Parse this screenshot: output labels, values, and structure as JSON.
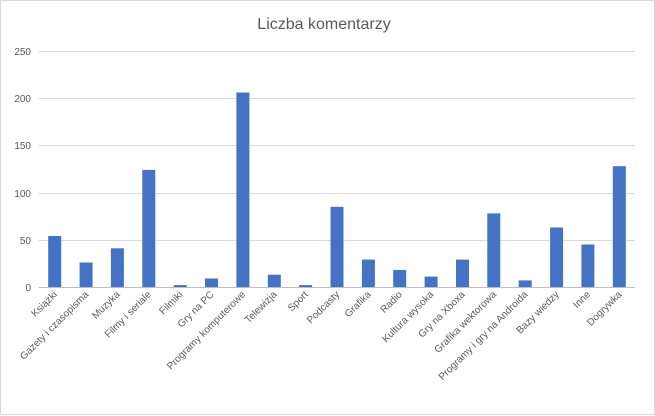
{
  "chart_data": {
    "type": "bar",
    "title": "Liczba komentarzy",
    "xlabel": "",
    "ylabel": "",
    "ylim": [
      0,
      250
    ],
    "yticks": [
      0,
      50,
      100,
      150,
      200,
      250
    ],
    "grid": true,
    "legend": "none",
    "bar_color": "#4472c4",
    "categories": [
      "Książki",
      "Gazety i czasopisma",
      "Muzyka",
      "Filmy i seriale",
      "Filmiki",
      "Gry na PC",
      "Programy komputerowe",
      "Telewizja",
      "Sport",
      "Podcasty",
      "Grafika",
      "Radio",
      "Kultura wysoka",
      "Gry na Xboxa",
      "Grafika wektorowa",
      "Programy i gry na Androida",
      "Bazy wiedzy",
      "Inne",
      "Dogrywka"
    ],
    "values": [
      54,
      26,
      41,
      124,
      2,
      9,
      206,
      13,
      2,
      85,
      29,
      18,
      11,
      29,
      78,
      7,
      63,
      45,
      128
    ]
  }
}
